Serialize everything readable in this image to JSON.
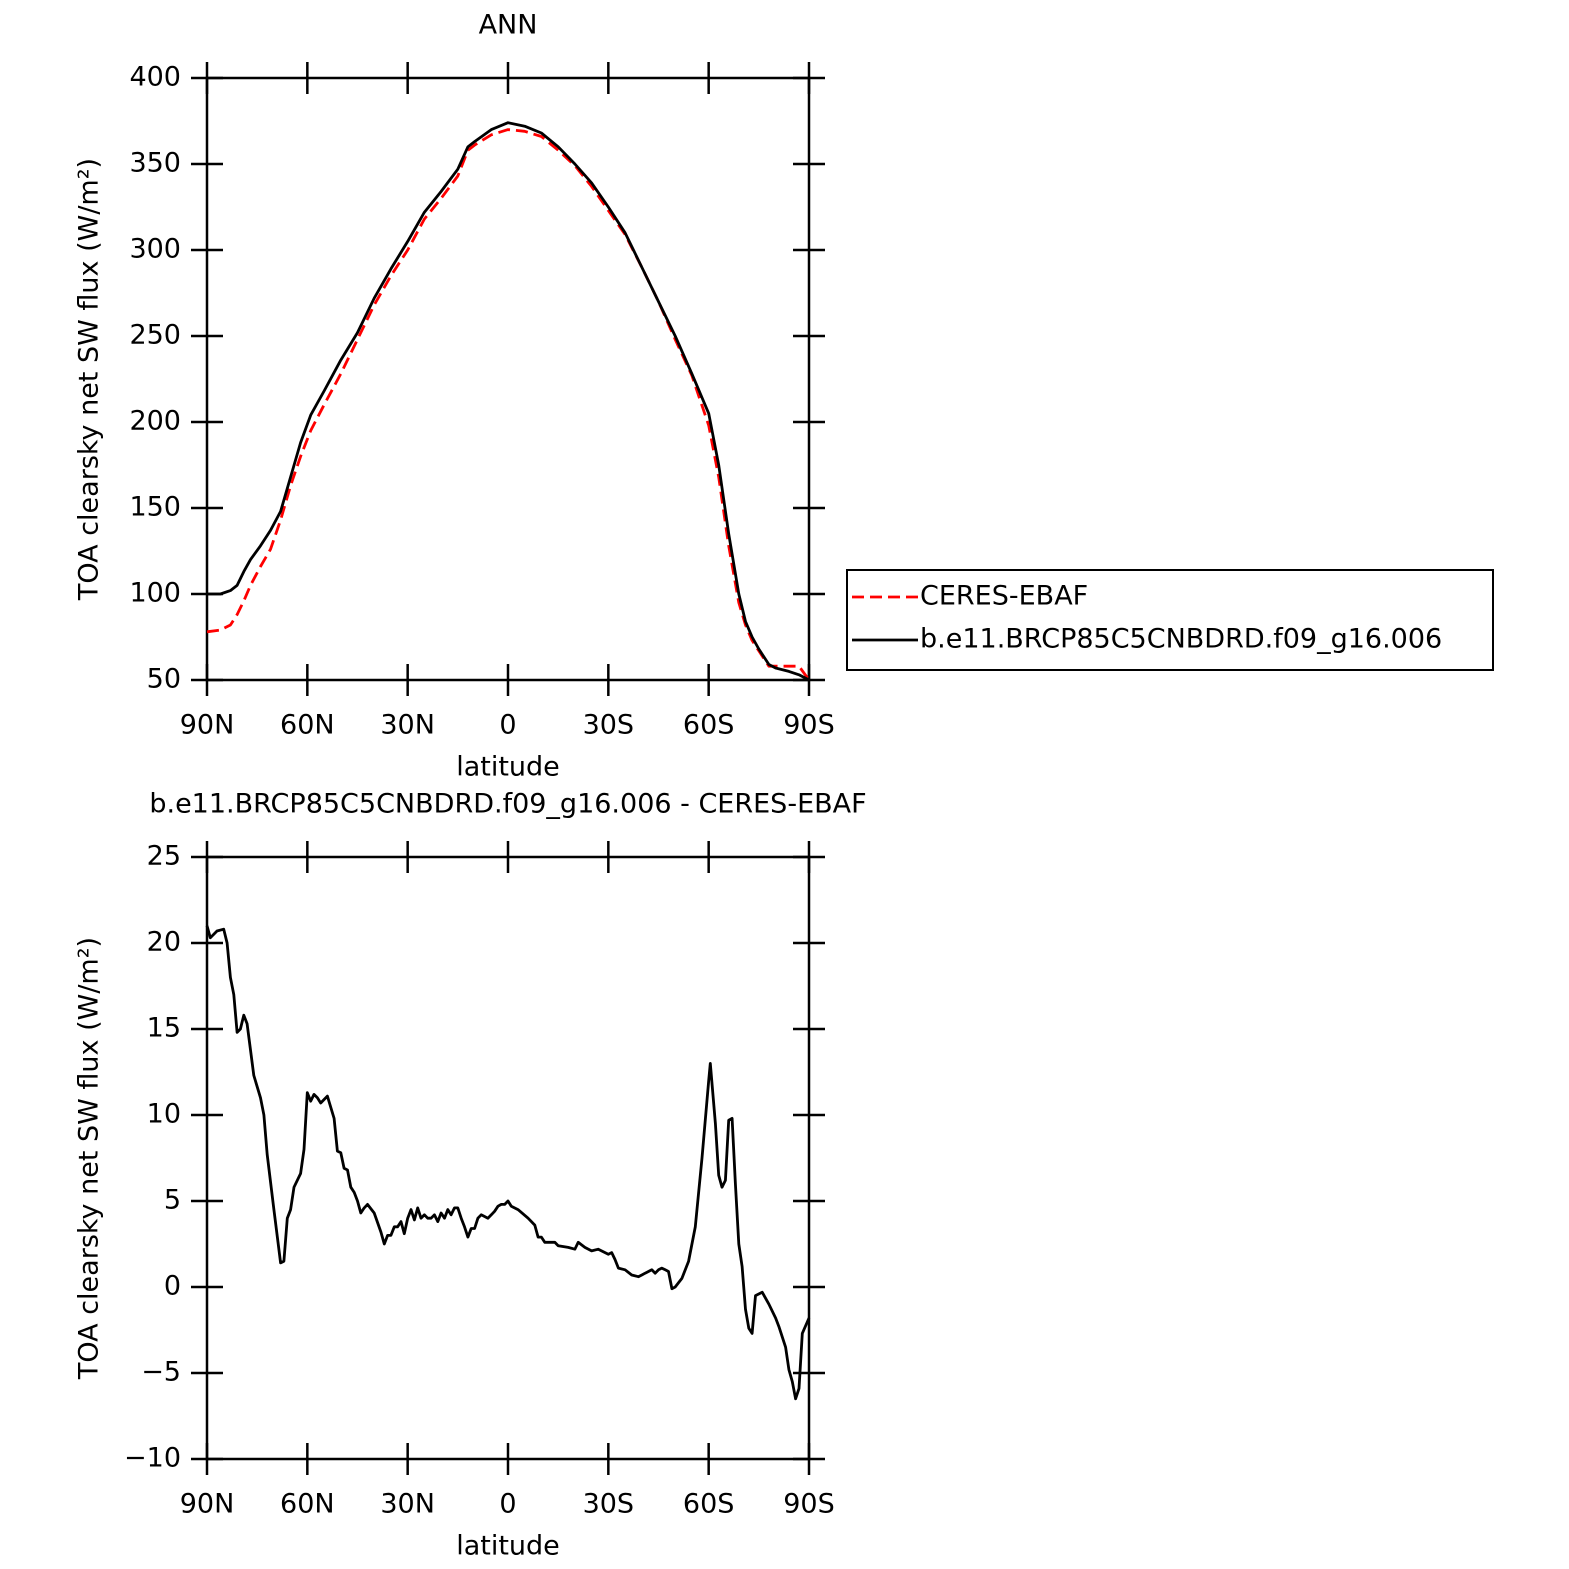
{
  "chart_data": [
    {
      "type": "line",
      "title": "ANN",
      "xlabel": "latitude",
      "ylabel": "TOA clearsky net SW flux (W/m²)",
      "xlim": [
        90,
        -90
      ],
      "xticks": [
        {
          "value": 90,
          "label": "90N"
        },
        {
          "value": 60,
          "label": "60N"
        },
        {
          "value": 30,
          "label": "30N"
        },
        0,
        {
          "value": -30,
          "label": "30S"
        },
        {
          "value": -60,
          "label": "60S"
        },
        {
          "value": -90,
          "label": "90S"
        }
      ],
      "ylim": [
        50,
        400
      ],
      "yticks": [
        50,
        100,
        150,
        200,
        250,
        300,
        350,
        400
      ],
      "legend": "right",
      "series": [
        {
          "name": "CERES-EBAF",
          "color": "#ff0000",
          "dash": "dashed",
          "x": [
            90,
            86,
            83,
            81,
            79,
            77,
            74,
            71,
            68,
            65,
            62,
            59,
            55,
            50,
            45,
            40,
            35,
            30,
            25,
            20,
            15,
            12,
            10,
            5,
            0,
            -5,
            -10,
            -15,
            -20,
            -25,
            -30,
            -35,
            -40,
            -45,
            -50,
            -55,
            -60,
            -63,
            -66,
            -69,
            -71,
            -73,
            -75,
            -78,
            -80,
            -84,
            -87,
            -90
          ],
          "values": [
            78,
            79,
            82,
            88,
            96,
            105,
            116,
            126,
            143,
            163,
            180,
            195,
            210,
            228,
            248,
            268,
            285,
            300,
            318,
            330,
            343,
            358,
            361,
            367,
            370,
            369,
            366,
            358,
            349,
            337,
            323,
            309,
            290,
            270,
            248,
            227,
            198,
            168,
            128,
            95,
            82,
            73,
            67,
            58,
            58,
            58,
            58,
            50
          ]
        },
        {
          "name": "b.e11.BRCP85C5CNBDRD.f09_g16.006",
          "color": "#000000",
          "dash": "solid",
          "x": [
            90,
            86,
            83,
            81,
            79,
            77,
            74,
            71,
            68,
            65,
            62,
            59,
            55,
            50,
            45,
            40,
            35,
            30,
            25,
            20,
            15,
            12,
            10,
            5,
            0,
            -5,
            -10,
            -15,
            -20,
            -25,
            -30,
            -35,
            -40,
            -45,
            -50,
            -55,
            -60,
            -63,
            -66,
            -69,
            -71,
            -73,
            -75,
            -78,
            -80,
            -84,
            -87,
            -90
          ],
          "values": [
            100,
            100,
            102,
            105,
            113,
            120,
            128,
            137,
            148,
            168,
            188,
            204,
            218,
            236,
            252,
            272,
            289,
            305,
            322,
            334,
            347,
            360,
            363,
            370,
            374,
            372,
            368,
            360,
            350,
            339,
            325,
            310,
            290,
            270,
            250,
            228,
            205,
            175,
            135,
            100,
            84,
            75,
            68,
            59,
            57,
            55,
            53,
            50
          ]
        }
      ]
    },
    {
      "type": "line",
      "title": "b.e11.BRCP85C5CNBDRD.f09_g16.006 - CERES-EBAF",
      "xlabel": "latitude",
      "ylabel": "TOA clearsky net SW flux (W/m²)",
      "xlim": [
        90,
        -90
      ],
      "xticks": [
        {
          "value": 90,
          "label": "90N"
        },
        {
          "value": 60,
          "label": "60N"
        },
        {
          "value": 30,
          "label": "30N"
        },
        0,
        {
          "value": -30,
          "label": "30S"
        },
        {
          "value": -60,
          "label": "60S"
        },
        {
          "value": -90,
          "label": "90S"
        }
      ],
      "ylim": [
        -10,
        25
      ],
      "yticks": [
        {
          "value": -10,
          "label": "−10"
        },
        {
          "value": -5,
          "label": "−5"
        },
        0,
        5,
        10,
        15,
        20,
        25
      ],
      "series": [
        {
          "color": "#000000",
          "dash": "solid",
          "x": [
            90,
            89,
            87,
            85,
            84,
            83,
            82,
            81,
            80,
            79,
            78,
            76,
            74,
            73,
            72,
            70,
            68,
            67,
            66,
            65,
            64,
            62,
            61,
            60,
            59,
            58,
            57,
            56,
            54,
            52,
            51,
            50,
            49,
            48,
            47,
            46,
            45,
            44,
            43,
            42,
            40,
            38,
            37,
            36,
            35,
            34,
            33,
            32,
            31,
            30,
            29,
            28,
            27,
            26,
            25,
            24,
            23,
            22,
            21,
            20,
            19,
            18,
            17,
            16,
            15,
            14,
            13,
            12,
            11,
            10,
            9,
            8,
            7,
            6,
            5,
            4,
            3,
            2,
            1,
            0,
            -1,
            -3,
            -6,
            -8,
            -9,
            -10,
            -11,
            -14,
            -15,
            -18,
            -20,
            -21,
            -23,
            -25,
            -27,
            -30,
            -31,
            -32,
            -33,
            -35,
            -37,
            -39,
            -40,
            -41,
            -43,
            -44,
            -45,
            -46,
            -47,
            -48,
            -49,
            -50,
            -52,
            -54,
            -56,
            -58,
            -60,
            -60.5,
            -62,
            -63,
            -64,
            -65,
            -66,
            -67,
            -68,
            -69,
            -70,
            -71,
            -72,
            -73,
            -74,
            -76,
            -78,
            -80,
            -81,
            -83,
            -84,
            -85,
            -86,
            -87,
            -88,
            -90
          ],
          "values": [
            21,
            20.3,
            20.7,
            20.8,
            20,
            18,
            17,
            14.8,
            15,
            15.8,
            15.3,
            12.3,
            11,
            10,
            7.7,
            4.5,
            1.4,
            1.5,
            4,
            4.5,
            5.8,
            6.6,
            8,
            11.3,
            10.8,
            11.2,
            11,
            10.7,
            11.1,
            9.8,
            7.9,
            7.8,
            6.9,
            6.8,
            5.8,
            5.5,
            5,
            4.3,
            4.6,
            4.8,
            4.3,
            3.2,
            2.5,
            3,
            3,
            3.5,
            3.5,
            3.8,
            3.1,
            4,
            4.5,
            3.9,
            4.6,
            4,
            4.2,
            4,
            4,
            4.2,
            3.8,
            4.3,
            4,
            4.5,
            4.2,
            4.6,
            4.6,
            4,
            3.5,
            2.9,
            3.4,
            3.4,
            4,
            4.2,
            4.1,
            4,
            4.2,
            4.4,
            4.7,
            4.8,
            4.8,
            5,
            4.7,
            4.5,
            4,
            3.6,
            2.9,
            2.9,
            2.6,
            2.6,
            2.4,
            2.3,
            2.2,
            2.6,
            2.3,
            2.1,
            2.2,
            1.9,
            2,
            1.6,
            1.1,
            1,
            0.7,
            0.6,
            0.7,
            0.8,
            1,
            0.8,
            1,
            1.1,
            1,
            0.9,
            -0.1,
            0,
            0.5,
            1.5,
            3.5,
            7.5,
            12,
            13,
            9.5,
            6.5,
            5.8,
            6.2,
            9.7,
            9.8,
            6,
            2.5,
            1.2,
            -1.3,
            -2.4,
            -2.7,
            -0.5,
            -0.3,
            -1,
            -1.8,
            -2.3,
            -3.5,
            -4.8,
            -5.5,
            -6.5,
            -5.9,
            -2.7,
            -1.8
          ]
        }
      ]
    }
  ]
}
